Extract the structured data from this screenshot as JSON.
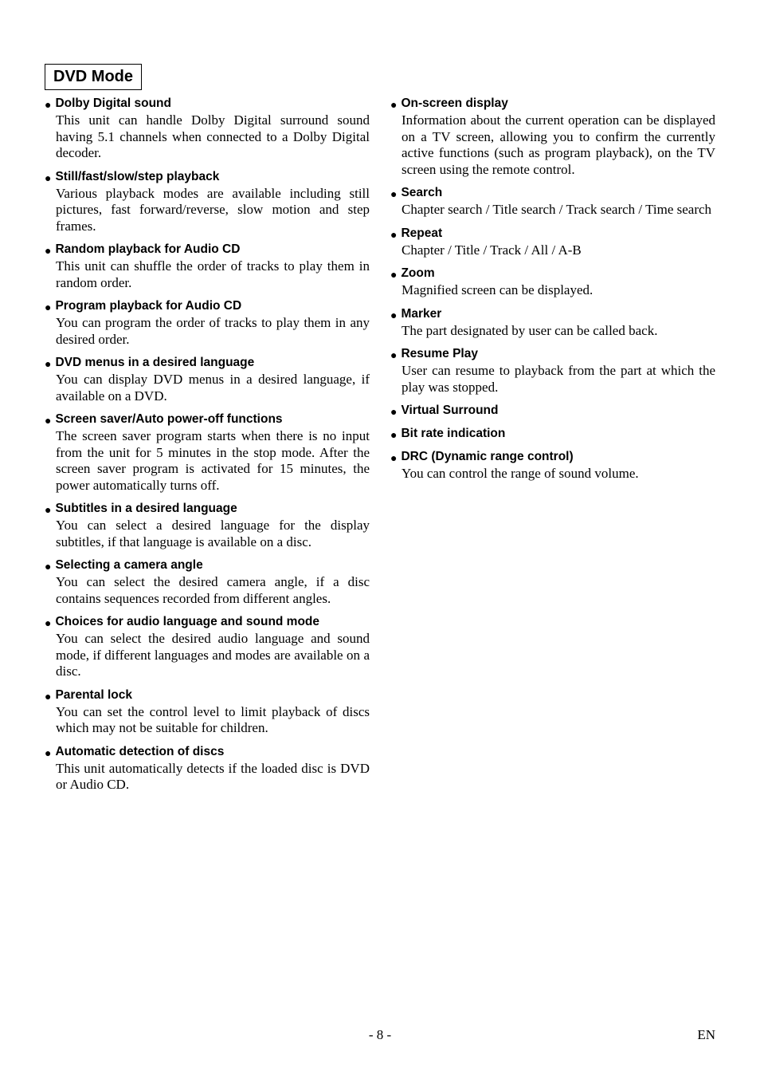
{
  "colors": {
    "bg": "#ffffff",
    "text": "#000000",
    "border": "#000000"
  },
  "mode_title": "DVD Mode",
  "left_features": [
    {
      "title": "Dolby Digital sound",
      "body": "This unit can handle Dolby Digital surround sound having 5.1 channels when connected to a Dolby Digital decoder."
    },
    {
      "title": "Still/fast/slow/step playback",
      "body": "Various playback modes are available including still pictures, fast forward/reverse, slow motion and step frames."
    },
    {
      "title": "Random playback for Audio CD",
      "body": "This unit can shuffle the order of tracks to play them in random order."
    },
    {
      "title": "Program playback for Audio CD",
      "body": "You can program the order of tracks to play them in any desired order."
    },
    {
      "title": "DVD menus in a desired language",
      "body": "You can display DVD menus in a desired language, if available on a DVD."
    },
    {
      "title": "Screen saver/Auto power-off functions",
      "body": "The screen saver program starts when there is no input from the unit for 5 minutes in the stop mode. After the screen saver program is activated for 15 minutes, the power automatically turns off."
    },
    {
      "title": "Subtitles in a desired language",
      "body": "You can select a desired language for the display subtitles, if that language is available on a disc."
    },
    {
      "title": "Selecting a camera angle",
      "body": "You can select the desired camera angle, if a disc contains sequences recorded from different angles."
    },
    {
      "title": "Choices for audio language and sound mode",
      "body": "You can select the desired audio language and sound mode, if different languages and modes are available on a disc."
    },
    {
      "title": "Parental lock",
      "body": "You can set the control level to limit playback of discs which may not be suitable for children."
    },
    {
      "title": "Automatic detection of discs",
      "body": "This unit automatically detects if the loaded disc is DVD or Audio CD."
    }
  ],
  "right_features": [
    {
      "title": "On-screen display",
      "body": "Information about the current operation can be displayed on a TV screen, allowing you to confirm the currently active functions (such as program playback), on the TV screen using the remote control."
    },
    {
      "title": "Search",
      "body": "Chapter search / Title search / Track search / Time search"
    },
    {
      "title": "Repeat",
      "body": "Chapter / Title / Track / All / A-B"
    },
    {
      "title": "Zoom",
      "body": "Magnified screen can be displayed."
    },
    {
      "title": "Marker",
      "body": "The part designated by user can be called back."
    },
    {
      "title": "Resume Play",
      "body": "User can resume to playback from the part at which the play was stopped."
    },
    {
      "title": "Virtual Surround",
      "body": ""
    },
    {
      "title": "Bit rate indication",
      "body": ""
    },
    {
      "title": "DRC (Dynamic range control)",
      "body": "You can control the range of sound volume."
    }
  ],
  "footer": {
    "page": "- 8 -",
    "lang": "EN"
  }
}
